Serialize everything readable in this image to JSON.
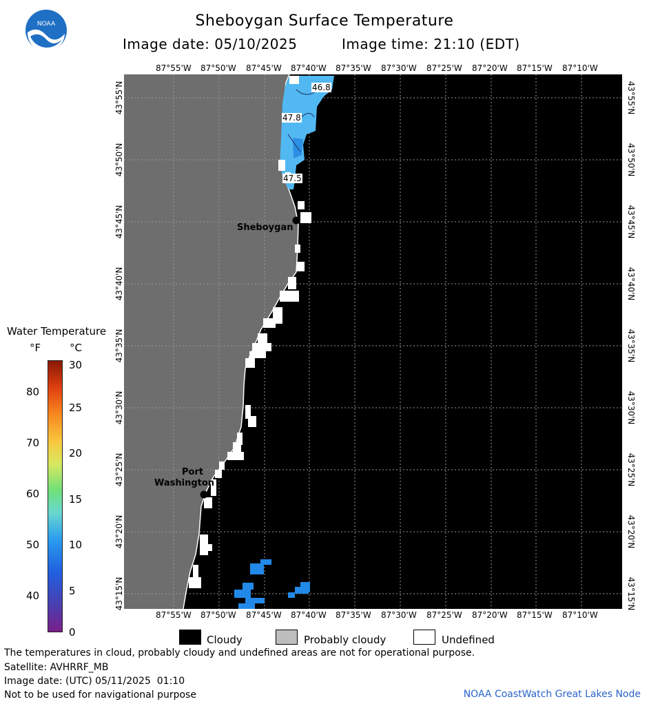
{
  "header": {
    "title": "Sheboygan Surface Temperature",
    "image_date": "Image date: 05/10/2025",
    "image_time": "Image time: 21:10 (EDT)",
    "logo_text": "NOAA"
  },
  "map": {
    "lon_labels": [
      "87°55'W",
      "87°50'W",
      "87°45'W",
      "87°40'W",
      "87°35'W",
      "87°30'W",
      "87°25'W",
      "87°20'W",
      "87°15'W",
      "87°10'W"
    ],
    "lat_labels": [
      "43°55'N",
      "43°50'N",
      "43°45'N",
      "43°40'N",
      "43°35'N",
      "43°30'N",
      "43°25'N",
      "43°20'N",
      "43°15'N"
    ],
    "places": {
      "sheboygan": "Sheboygan",
      "port_line1": "Port",
      "port_line2": "Washington"
    },
    "temp_labels": [
      "46.8",
      "47.8",
      "47.5"
    ]
  },
  "scale": {
    "title": "Water Temperature",
    "unit_f": "°F",
    "unit_c": "°C",
    "f_ticks": [
      "80",
      "70",
      "60",
      "50",
      "40"
    ],
    "c_ticks": [
      "30",
      "25",
      "20",
      "15",
      "10",
      "5",
      "0"
    ]
  },
  "legend": {
    "cloudy": "Cloudy",
    "probably_cloudy": "Probably cloudy",
    "undefined": "Undefined",
    "colors": {
      "cloudy": "#000000",
      "probably_cloudy": "#bdbdbd",
      "undefined": "#ffffff",
      "land": "#6e6e6e"
    }
  },
  "footer": {
    "disclaimer": "The temperatures in cloud, probably cloudy and undefined areas are not for operational purpose.",
    "satellite": "Satellite: AVHRRF_MB",
    "utc_date": "Image date: (UTC) 05/11/2025  01:10",
    "navigation": "Not to be used for navigational purpose",
    "credit": "NOAA CoastWatch Great Lakes Node"
  }
}
